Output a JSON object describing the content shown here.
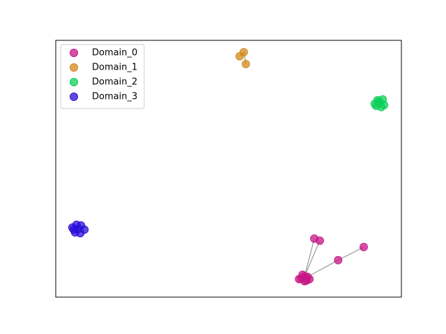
{
  "chart_data": {
    "type": "scatter",
    "xlim": [
      0,
      100
    ],
    "ylim": [
      0,
      100
    ],
    "legend": "upper left",
    "series": [
      {
        "name": "Domain_0",
        "color": "#c71585",
        "x": [
          71.0,
          72.8,
          72.0,
          71.4,
          72.6,
          70.4,
          73.4,
          72.0,
          74.8,
          76.4,
          81.7,
          89.1
        ],
        "values": [
          7.3,
          7.9,
          6.2,
          8.7,
          6.5,
          7.0,
          7.0,
          8.1,
          22.8,
          22.0,
          14.4,
          19.5
        ],
        "edges": [
          [
            7,
            8
          ],
          [
            7,
            9
          ],
          [
            1,
            10
          ],
          [
            10,
            11
          ]
        ]
      },
      {
        "name": "Domain_1",
        "color": "#d4891c",
        "x": [
          54.4,
          53.2,
          55.0
        ],
        "values": [
          95.4,
          93.8,
          90.8
        ],
        "edges": [
          [
            0,
            1
          ],
          [
            0,
            2
          ]
        ]
      },
      {
        "name": "Domain_2",
        "color": "#0ecf5a",
        "x": [
          93.1,
          94.6,
          92.7,
          95.0,
          93.8,
          92.3,
          94.2,
          93.5
        ],
        "values": [
          76.7,
          77.0,
          74.5,
          74.8,
          75.6,
          75.3,
          74.0,
          76.2
        ],
        "edges": []
      },
      {
        "name": "Domain_3",
        "color": "#2a0fd6",
        "x": [
          4.8,
          6.0,
          7.3,
          8.3,
          7.1,
          5.6,
          6.5,
          5.2
        ],
        "values": [
          27.1,
          28.2,
          27.9,
          26.3,
          24.9,
          25.2,
          26.6,
          26.3
        ],
        "edges": []
      }
    ]
  }
}
